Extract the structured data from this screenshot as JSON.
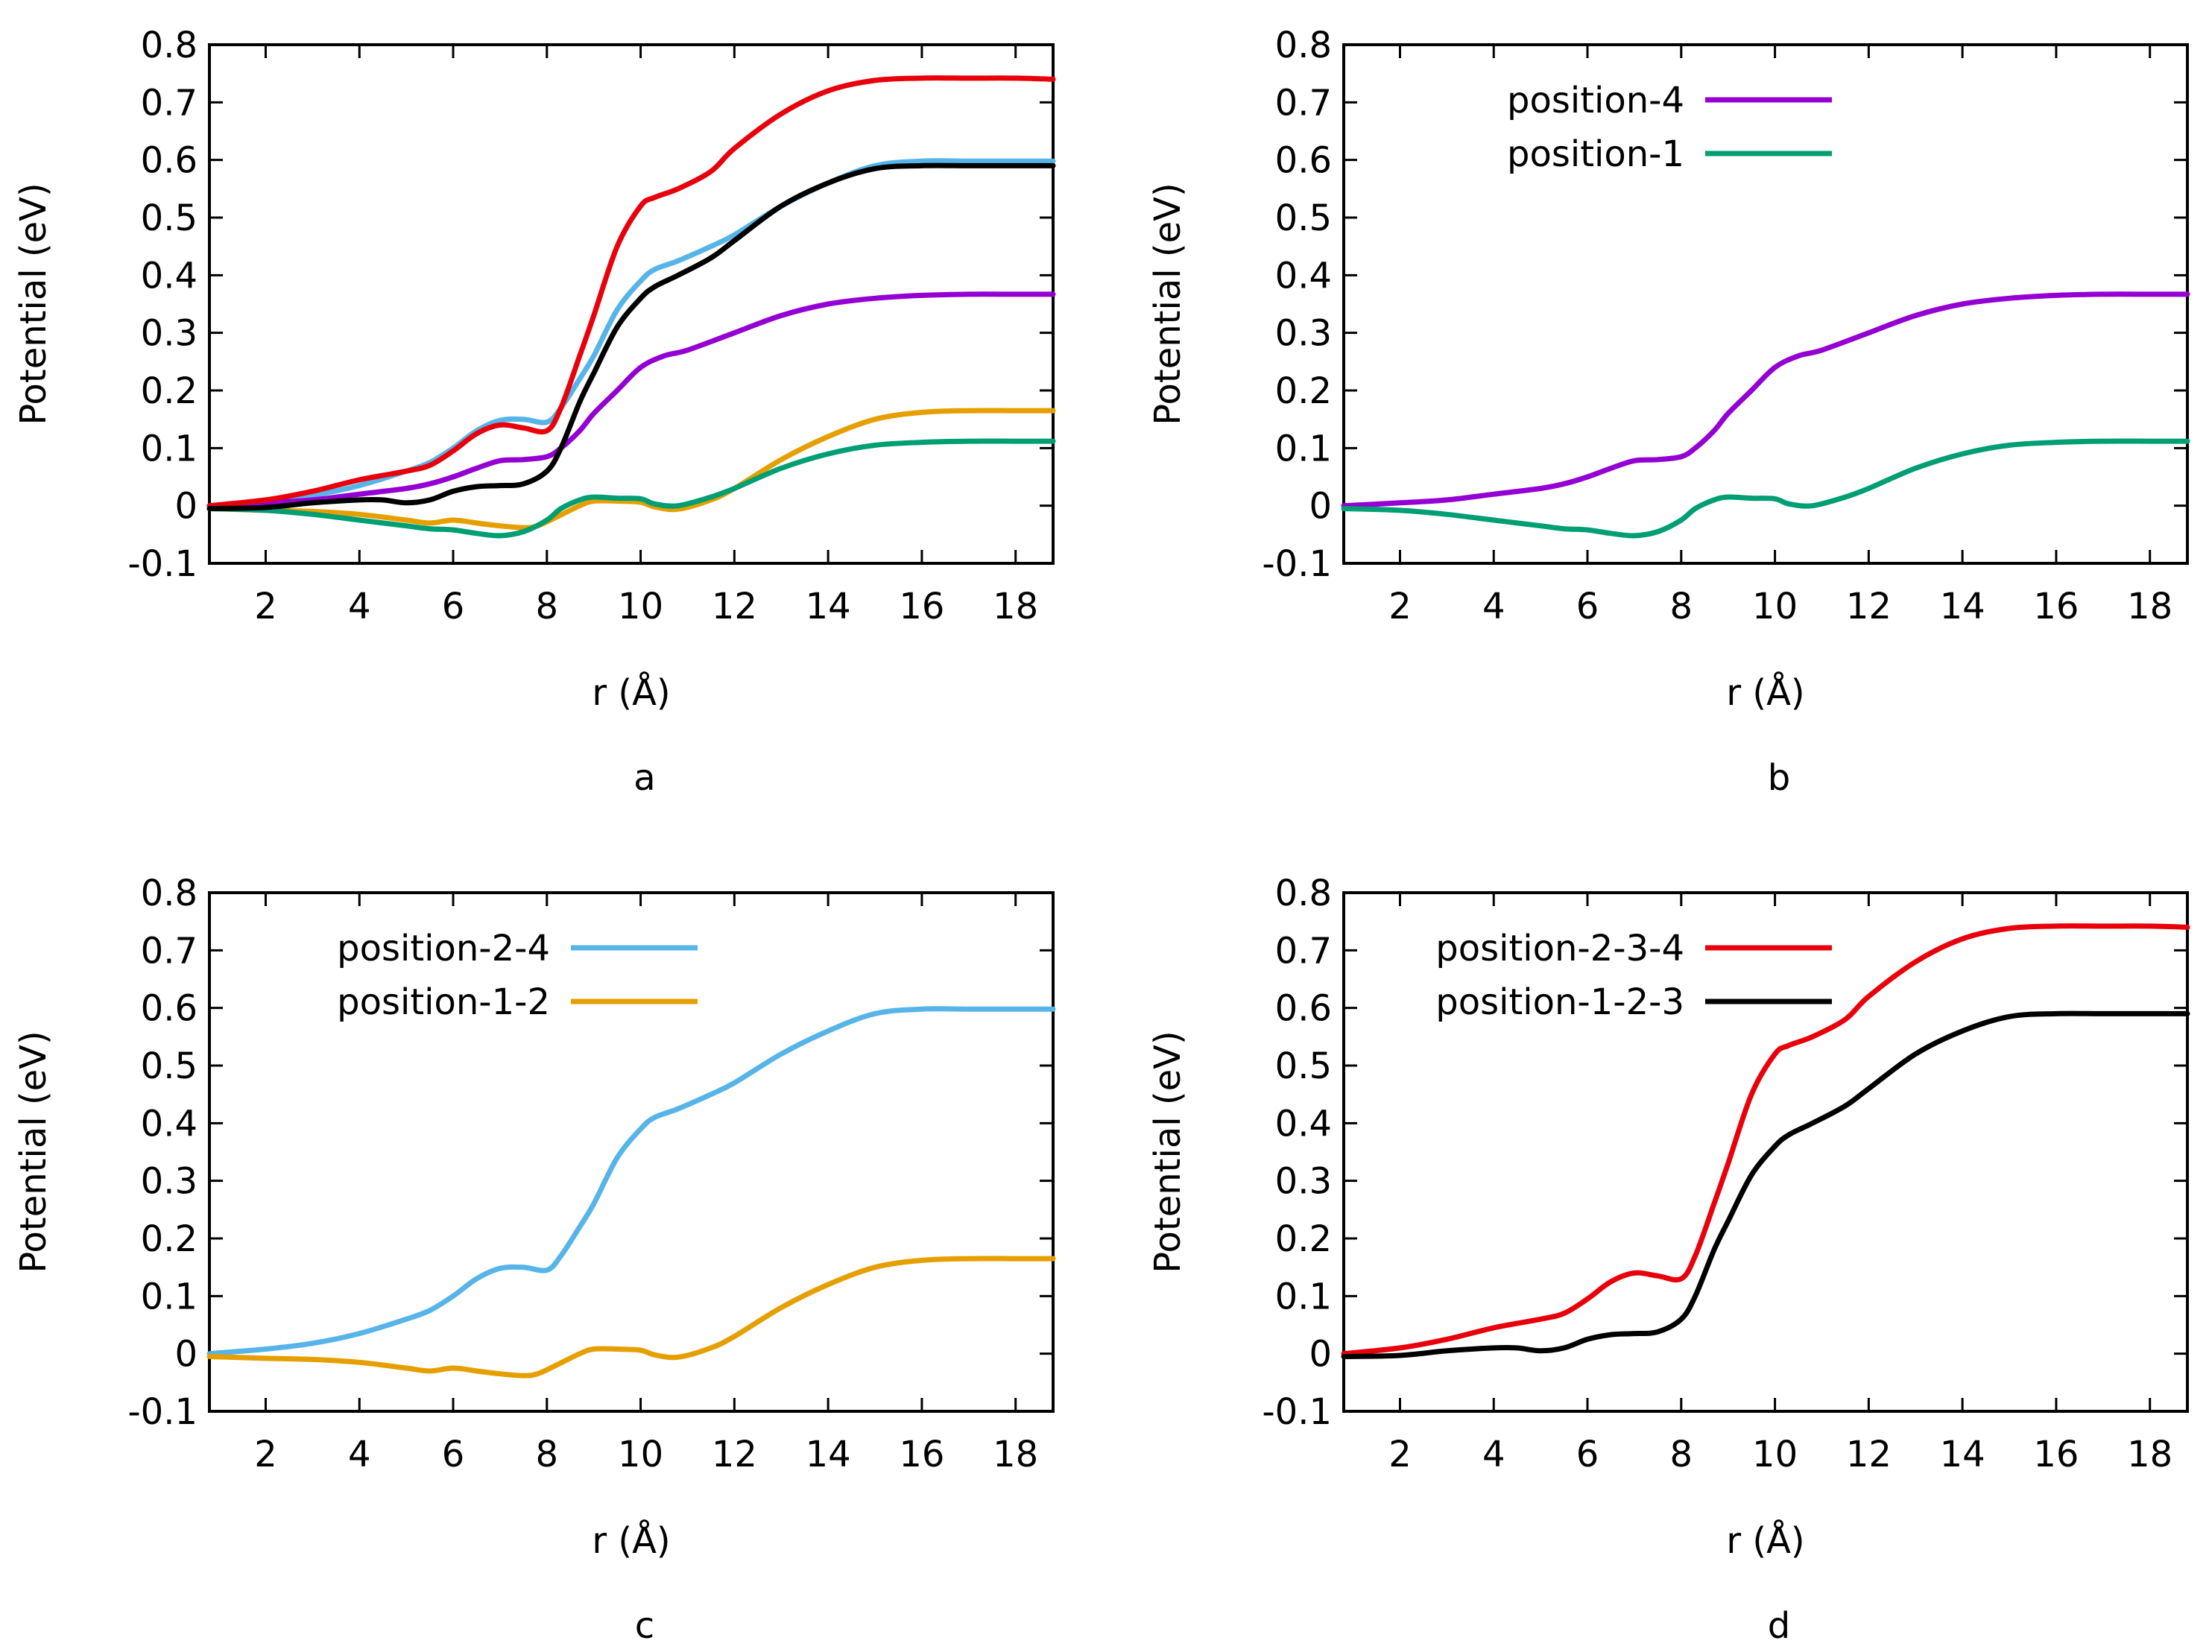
{
  "chart_data": [
    {
      "type": "line",
      "panel_label": "a",
      "xlabel": "r (Å)",
      "ylabel": "Potential (eV)",
      "xlim": [
        0.8,
        18.8
      ],
      "ylim": [
        -0.1,
        0.8
      ],
      "xticks": [
        "2",
        "4",
        "6",
        "8",
        "10",
        "12",
        "14",
        "16",
        "18"
      ],
      "yticks": [
        "-0.1",
        "0",
        "0.1",
        "0.2",
        "0.3",
        "0.4",
        "0.5",
        "0.6",
        "0.7",
        "0.8"
      ],
      "legend": null,
      "series": [
        {
          "name": "position-2-4",
          "color": "#56b4e9",
          "x": [
            0.8,
            2,
            3,
            4,
            5,
            5.5,
            6,
            6.5,
            7,
            7.5,
            8,
            8.3,
            8.7,
            9,
            9.5,
            10,
            10.3,
            10.8,
            11.5,
            12,
            13,
            14,
            15,
            16,
            17,
            18,
            18.8
          ],
          "y": [
            0,
            0.008,
            0.018,
            0.035,
            0.06,
            0.075,
            0.1,
            0.13,
            0.148,
            0.15,
            0.145,
            0.17,
            0.22,
            0.26,
            0.34,
            0.39,
            0.41,
            0.425,
            0.45,
            0.47,
            0.52,
            0.56,
            0.59,
            0.598,
            0.598,
            0.598,
            0.598
          ]
        },
        {
          "name": "position-1-2",
          "color": "#e69f00",
          "x": [
            0.8,
            2,
            3,
            4,
            5,
            5.5,
            6,
            6.5,
            7,
            7.5,
            7.8,
            8.2,
            8.7,
            9,
            9.5,
            10,
            10.3,
            10.8,
            11.5,
            12,
            13,
            14,
            15,
            16,
            17,
            18,
            18.8
          ],
          "y": [
            -0.005,
            -0.008,
            -0.01,
            -0.015,
            -0.025,
            -0.03,
            -0.025,
            -0.03,
            -0.035,
            -0.038,
            -0.035,
            -0.02,
            0,
            0.008,
            0.008,
            0.006,
            -0.002,
            -0.006,
            0.01,
            0.03,
            0.08,
            0.12,
            0.15,
            0.162,
            0.165,
            0.165,
            0.165
          ]
        },
        {
          "name": "position-4",
          "color": "#9400d3",
          "x": [
            0.8,
            2,
            3,
            4,
            5,
            5.5,
            6,
            6.5,
            7,
            7.5,
            8,
            8.3,
            8.7,
            9,
            9.5,
            10,
            10.5,
            11,
            12,
            13,
            14,
            15,
            16,
            17,
            18,
            18.8
          ],
          "y": [
            0,
            0.005,
            0.01,
            0.02,
            0.03,
            0.038,
            0.05,
            0.065,
            0.078,
            0.08,
            0.085,
            0.1,
            0.13,
            0.16,
            0.2,
            0.24,
            0.26,
            0.27,
            0.3,
            0.33,
            0.35,
            0.36,
            0.365,
            0.367,
            0.367,
            0.367
          ]
        },
        {
          "name": "position-1",
          "color": "#009e73",
          "x": [
            0.8,
            2,
            3,
            4,
            5,
            5.5,
            6,
            6.5,
            7,
            7.5,
            8,
            8.3,
            8.7,
            9,
            9.5,
            10,
            10.3,
            10.8,
            11.5,
            12,
            13,
            14,
            15,
            16,
            17,
            18,
            18.8
          ],
          "y": [
            -0.005,
            -0.008,
            -0.015,
            -0.025,
            -0.035,
            -0.04,
            -0.042,
            -0.048,
            -0.052,
            -0.045,
            -0.025,
            -0.005,
            0.01,
            0.015,
            0.013,
            0.012,
            0.003,
            0,
            0.015,
            0.03,
            0.065,
            0.09,
            0.105,
            0.11,
            0.112,
            0.112,
            0.112
          ]
        },
        {
          "name": "position-2-3-4",
          "color": "#e8000b",
          "x": [
            0.8,
            2,
            3,
            4,
            5,
            5.5,
            6,
            6.5,
            7,
            7.5,
            8,
            8.3,
            8.7,
            9,
            9.5,
            10,
            10.3,
            10.8,
            11.5,
            12,
            13,
            14,
            15,
            16,
            17,
            18,
            18.8
          ],
          "y": [
            0,
            0.01,
            0.025,
            0.045,
            0.06,
            0.07,
            0.095,
            0.125,
            0.14,
            0.135,
            0.13,
            0.17,
            0.26,
            0.33,
            0.45,
            0.52,
            0.535,
            0.55,
            0.58,
            0.62,
            0.68,
            0.72,
            0.738,
            0.742,
            0.742,
            0.742,
            0.74
          ]
        },
        {
          "name": "position-1-2-3",
          "color": "#000000",
          "x": [
            0.8,
            2,
            3,
            4,
            4.5,
            5,
            5.5,
            6,
            6.5,
            7,
            7.5,
            8,
            8.3,
            8.7,
            9,
            9.5,
            10,
            10.3,
            10.8,
            11.5,
            12,
            13,
            14,
            15,
            16,
            17,
            18,
            18.8
          ],
          "y": [
            -0.005,
            -0.003,
            0.005,
            0.01,
            0.01,
            0.005,
            0.01,
            0.025,
            0.033,
            0.035,
            0.038,
            0.06,
            0.1,
            0.18,
            0.23,
            0.31,
            0.36,
            0.38,
            0.4,
            0.43,
            0.46,
            0.52,
            0.56,
            0.585,
            0.59,
            0.59,
            0.59,
            0.59
          ]
        }
      ]
    },
    {
      "type": "line",
      "panel_label": "b",
      "xlabel": "r (Å)",
      "ylabel": "Potential (eV)",
      "xlim": [
        0.8,
        18.8
      ],
      "ylim": [
        -0.1,
        0.8
      ],
      "xticks": [
        "2",
        "4",
        "6",
        "8",
        "10",
        "12",
        "14",
        "16",
        "18"
      ],
      "yticks": [
        "-0.1",
        "0",
        "0.1",
        "0.2",
        "0.3",
        "0.4",
        "0.5",
        "0.6",
        "0.7",
        "0.8"
      ],
      "legend": "top-left",
      "series": [
        {
          "name": "position-4",
          "color": "#9400d3",
          "x": [
            0.8,
            2,
            3,
            4,
            5,
            5.5,
            6,
            6.5,
            7,
            7.5,
            8,
            8.3,
            8.7,
            9,
            9.5,
            10,
            10.5,
            11,
            12,
            13,
            14,
            15,
            16,
            17,
            18,
            18.8
          ],
          "y": [
            0,
            0.005,
            0.01,
            0.02,
            0.03,
            0.038,
            0.05,
            0.065,
            0.078,
            0.08,
            0.085,
            0.1,
            0.13,
            0.16,
            0.2,
            0.24,
            0.26,
            0.27,
            0.3,
            0.33,
            0.35,
            0.36,
            0.365,
            0.367,
            0.367,
            0.367
          ]
        },
        {
          "name": "position-1",
          "color": "#009e73",
          "x": [
            0.8,
            2,
            3,
            4,
            5,
            5.5,
            6,
            6.5,
            7,
            7.5,
            8,
            8.3,
            8.7,
            9,
            9.5,
            10,
            10.3,
            10.8,
            11.5,
            12,
            13,
            14,
            15,
            16,
            17,
            18,
            18.8
          ],
          "y": [
            -0.005,
            -0.008,
            -0.015,
            -0.025,
            -0.035,
            -0.04,
            -0.042,
            -0.048,
            -0.052,
            -0.045,
            -0.025,
            -0.005,
            0.01,
            0.015,
            0.013,
            0.012,
            0.003,
            0,
            0.015,
            0.03,
            0.065,
            0.09,
            0.105,
            0.11,
            0.112,
            0.112,
            0.112
          ]
        }
      ]
    },
    {
      "type": "line",
      "panel_label": "c",
      "xlabel": "r (Å)",
      "ylabel": "Potential (eV)",
      "xlim": [
        0.8,
        18.8
      ],
      "ylim": [
        -0.1,
        0.8
      ],
      "xticks": [
        "2",
        "4",
        "6",
        "8",
        "10",
        "12",
        "14",
        "16",
        "18"
      ],
      "yticks": [
        "-0.1",
        "0",
        "0.1",
        "0.2",
        "0.3",
        "0.4",
        "0.5",
        "0.6",
        "0.7",
        "0.8"
      ],
      "legend": "top-left",
      "series": [
        {
          "name": "position-2-4",
          "color": "#56b4e9",
          "x": [
            0.8,
            2,
            3,
            4,
            5,
            5.5,
            6,
            6.5,
            7,
            7.5,
            8,
            8.3,
            8.7,
            9,
            9.5,
            10,
            10.3,
            10.8,
            11.5,
            12,
            13,
            14,
            15,
            16,
            17,
            18,
            18.8
          ],
          "y": [
            0,
            0.008,
            0.018,
            0.035,
            0.06,
            0.075,
            0.1,
            0.13,
            0.148,
            0.15,
            0.145,
            0.17,
            0.22,
            0.26,
            0.34,
            0.39,
            0.41,
            0.425,
            0.45,
            0.47,
            0.52,
            0.56,
            0.59,
            0.598,
            0.598,
            0.598,
            0.598
          ]
        },
        {
          "name": "position-1-2",
          "color": "#e69f00",
          "x": [
            0.8,
            2,
            3,
            4,
            5,
            5.5,
            6,
            6.5,
            7,
            7.5,
            7.8,
            8.2,
            8.7,
            9,
            9.5,
            10,
            10.3,
            10.8,
            11.5,
            12,
            13,
            14,
            15,
            16,
            17,
            18,
            18.8
          ],
          "y": [
            -0.005,
            -0.008,
            -0.01,
            -0.015,
            -0.025,
            -0.03,
            -0.025,
            -0.03,
            -0.035,
            -0.038,
            -0.035,
            -0.02,
            0,
            0.008,
            0.008,
            0.006,
            -0.002,
            -0.006,
            0.01,
            0.03,
            0.08,
            0.12,
            0.15,
            0.162,
            0.165,
            0.165,
            0.165
          ]
        }
      ]
    },
    {
      "type": "line",
      "panel_label": "d",
      "xlabel": "r (Å)",
      "ylabel": "Potential (eV)",
      "xlim": [
        0.8,
        18.8
      ],
      "ylim": [
        -0.1,
        0.8
      ],
      "xticks": [
        "2",
        "4",
        "6",
        "8",
        "10",
        "12",
        "14",
        "16",
        "18"
      ],
      "yticks": [
        "-0.1",
        "0",
        "0.1",
        "0.2",
        "0.3",
        "0.4",
        "0.5",
        "0.6",
        "0.7",
        "0.8"
      ],
      "legend": "top-left",
      "series": [
        {
          "name": "position-2-3-4",
          "color": "#e8000b",
          "x": [
            0.8,
            2,
            3,
            4,
            5,
            5.5,
            6,
            6.5,
            7,
            7.5,
            8,
            8.3,
            8.7,
            9,
            9.5,
            10,
            10.3,
            10.8,
            11.5,
            12,
            13,
            14,
            15,
            16,
            17,
            18,
            18.8
          ],
          "y": [
            0,
            0.01,
            0.025,
            0.045,
            0.06,
            0.07,
            0.095,
            0.125,
            0.14,
            0.135,
            0.13,
            0.17,
            0.26,
            0.33,
            0.45,
            0.52,
            0.535,
            0.55,
            0.58,
            0.62,
            0.68,
            0.72,
            0.738,
            0.742,
            0.742,
            0.742,
            0.74
          ]
        },
        {
          "name": "position-1-2-3",
          "color": "#000000",
          "x": [
            0.8,
            2,
            3,
            4,
            4.5,
            5,
            5.5,
            6,
            6.5,
            7,
            7.5,
            8,
            8.3,
            8.7,
            9,
            9.5,
            10,
            10.3,
            10.8,
            11.5,
            12,
            13,
            14,
            15,
            16,
            17,
            18,
            18.8
          ],
          "y": [
            -0.005,
            -0.003,
            0.005,
            0.01,
            0.01,
            0.005,
            0.01,
            0.025,
            0.033,
            0.035,
            0.038,
            0.06,
            0.1,
            0.18,
            0.23,
            0.31,
            0.36,
            0.38,
            0.4,
            0.43,
            0.46,
            0.52,
            0.56,
            0.585,
            0.59,
            0.59,
            0.59,
            0.59
          ]
        }
      ]
    }
  ]
}
